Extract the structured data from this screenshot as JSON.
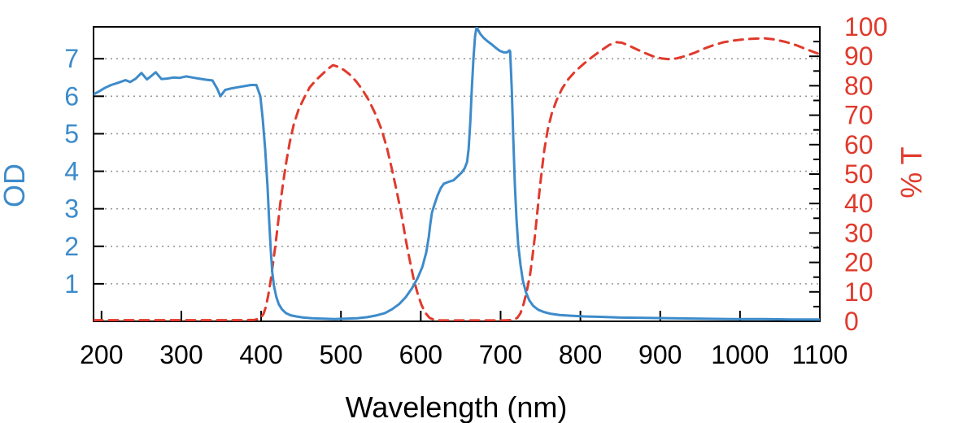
{
  "chart_data": {
    "type": "line",
    "title": "",
    "xlabel": "Wavelength (nm)",
    "ylabel_left": "OD",
    "ylabel_right": "% T",
    "x_range": [
      190,
      1100
    ],
    "x_ticks": [
      200,
      300,
      400,
      500,
      600,
      700,
      800,
      900,
      1000,
      1100
    ],
    "y_left_range": [
      0,
      7.85
    ],
    "y_left_ticks": [
      1,
      2,
      3,
      4,
      5,
      6,
      7
    ],
    "y_right_range": [
      0,
      100
    ],
    "y_right_ticks": [
      0,
      10,
      20,
      30,
      40,
      50,
      60,
      70,
      80,
      90,
      100
    ],
    "y_right_minor_step": 5,
    "grid": {
      "horizontal_at_left_ticks": true,
      "style": "dotted",
      "color": "#999999"
    },
    "legend": "none",
    "colors": {
      "left_axis": "#3d8bca",
      "right_axis": "#e03a2c",
      "frame": "#000000",
      "x_labels": "#000000",
      "background": "#ffffff"
    },
    "series": [
      {
        "name": "% T",
        "axis": "right",
        "color": "#e03a2c",
        "line_style": "dashed",
        "points": [
          [
            190,
            0.4
          ],
          [
            240,
            0.4
          ],
          [
            290,
            0.4
          ],
          [
            340,
            0.4
          ],
          [
            375,
            0.4
          ],
          [
            392,
            0.5
          ],
          [
            399,
            1.0
          ],
          [
            403,
            2.5
          ],
          [
            406,
            5
          ],
          [
            409,
            9
          ],
          [
            412,
            14
          ],
          [
            415,
            20
          ],
          [
            418,
            26
          ],
          [
            421,
            33
          ],
          [
            424,
            40
          ],
          [
            428,
            48
          ],
          [
            432,
            55
          ],
          [
            436,
            61
          ],
          [
            441,
            67
          ],
          [
            447,
            72
          ],
          [
            454,
            76
          ],
          [
            461,
            79.5
          ],
          [
            469,
            82
          ],
          [
            477,
            84
          ],
          [
            484,
            85.8
          ],
          [
            490,
            87
          ],
          [
            497,
            86.4
          ],
          [
            504,
            85.3
          ],
          [
            511,
            83.8
          ],
          [
            519,
            81.5
          ],
          [
            527,
            78.6
          ],
          [
            535,
            75
          ],
          [
            543,
            70.5
          ],
          [
            551,
            65
          ],
          [
            558,
            58.5
          ],
          [
            564,
            51.5
          ],
          [
            570,
            44
          ],
          [
            576,
            36
          ],
          [
            581,
            28
          ],
          [
            586,
            21
          ],
          [
            591,
            14.5
          ],
          [
            596,
            9.5
          ],
          [
            601,
            5.5
          ],
          [
            606,
            2.8
          ],
          [
            611,
            1.2
          ],
          [
            617,
            0.5
          ],
          [
            625,
            0.3
          ],
          [
            650,
            0.3
          ],
          [
            680,
            0.3
          ],
          [
            705,
            0.3
          ],
          [
            716,
            0.5
          ],
          [
            721,
            1.2
          ],
          [
            725,
            2.8
          ],
          [
            729,
            6
          ],
          [
            733,
            10.5
          ],
          [
            737,
            16
          ],
          [
            740,
            22
          ],
          [
            743,
            29
          ],
          [
            746,
            37
          ],
          [
            749,
            45
          ],
          [
            752,
            52
          ],
          [
            755,
            58.5
          ],
          [
            759,
            65
          ],
          [
            764,
            70.5
          ],
          [
            770,
            75
          ],
          [
            777,
            79
          ],
          [
            785,
            82.3
          ],
          [
            794,
            85
          ],
          [
            804,
            87.4
          ],
          [
            815,
            89.8
          ],
          [
            826,
            92
          ],
          [
            836,
            93.8
          ],
          [
            844,
            94.8
          ],
          [
            852,
            94.6
          ],
          [
            861,
            93.6
          ],
          [
            871,
            92.3
          ],
          [
            881,
            91.1
          ],
          [
            891,
            90
          ],
          [
            901,
            89.3
          ],
          [
            911,
            89
          ],
          [
            921,
            89.3
          ],
          [
            932,
            90.1
          ],
          [
            944,
            91.3
          ],
          [
            956,
            92.7
          ],
          [
            968,
            93.9
          ],
          [
            980,
            94.8
          ],
          [
            993,
            95.4
          ],
          [
            1006,
            95.8
          ],
          [
            1019,
            96
          ],
          [
            1031,
            96.1
          ],
          [
            1044,
            95.7
          ],
          [
            1057,
            94.9
          ],
          [
            1070,
            93.8
          ],
          [
            1082,
            92.5
          ],
          [
            1092,
            91.5
          ],
          [
            1100,
            90.7
          ]
        ]
      },
      {
        "name": "OD",
        "axis": "left",
        "color": "#3d8bca",
        "line_style": "solid",
        "points": [
          [
            190,
            6.05
          ],
          [
            197,
            6.13
          ],
          [
            204,
            6.22
          ],
          [
            212,
            6.3
          ],
          [
            221,
            6.36
          ],
          [
            230,
            6.43
          ],
          [
            236,
            6.38
          ],
          [
            243,
            6.47
          ],
          [
            250,
            6.62
          ],
          [
            257,
            6.45
          ],
          [
            263,
            6.55
          ],
          [
            268,
            6.64
          ],
          [
            275,
            6.46
          ],
          [
            282,
            6.47
          ],
          [
            290,
            6.5
          ],
          [
            298,
            6.49
          ],
          [
            306,
            6.53
          ],
          [
            314,
            6.5
          ],
          [
            322,
            6.47
          ],
          [
            331,
            6.44
          ],
          [
            339,
            6.42
          ],
          [
            345,
            6.2
          ],
          [
            349,
            6.0
          ],
          [
            355,
            6.17
          ],
          [
            363,
            6.21
          ],
          [
            371,
            6.24
          ],
          [
            379,
            6.27
          ],
          [
            387,
            6.3
          ],
          [
            394,
            6.3
          ],
          [
            399,
            6.0
          ],
          [
            402,
            5.4
          ],
          [
            405,
            4.6
          ],
          [
            408,
            3.6
          ],
          [
            410,
            2.7
          ],
          [
            412,
            1.9
          ],
          [
            414,
            1.3
          ],
          [
            416,
            0.95
          ],
          [
            419,
            0.65
          ],
          [
            422,
            0.46
          ],
          [
            426,
            0.32
          ],
          [
            431,
            0.22
          ],
          [
            437,
            0.16
          ],
          [
            444,
            0.13
          ],
          [
            453,
            0.1
          ],
          [
            464,
            0.08
          ],
          [
            478,
            0.07
          ],
          [
            492,
            0.06
          ],
          [
            506,
            0.07
          ],
          [
            520,
            0.08
          ],
          [
            533,
            0.11
          ],
          [
            545,
            0.16
          ],
          [
            555,
            0.22
          ],
          [
            564,
            0.32
          ],
          [
            573,
            0.46
          ],
          [
            581,
            0.64
          ],
          [
            589,
            0.88
          ],
          [
            596,
            1.15
          ],
          [
            602,
            1.45
          ],
          [
            607,
            1.85
          ],
          [
            610,
            2.25
          ],
          [
            612,
            2.6
          ],
          [
            614,
            2.9
          ],
          [
            617,
            3.1
          ],
          [
            621,
            3.35
          ],
          [
            625,
            3.55
          ],
          [
            629,
            3.67
          ],
          [
            635,
            3.72
          ],
          [
            641,
            3.76
          ],
          [
            646,
            3.86
          ],
          [
            651,
            3.96
          ],
          [
            655,
            4.08
          ],
          [
            658,
            4.25
          ],
          [
            660,
            4.6
          ],
          [
            662,
            5.3
          ],
          [
            664,
            6.2
          ],
          [
            666,
            7.0
          ],
          [
            668,
            7.6
          ],
          [
            670,
            7.85
          ],
          [
            672,
            7.76
          ],
          [
            675,
            7.65
          ],
          [
            679,
            7.55
          ],
          [
            684,
            7.46
          ],
          [
            689,
            7.38
          ],
          [
            694,
            7.29
          ],
          [
            699,
            7.21
          ],
          [
            704,
            7.17
          ],
          [
            708,
            7.17
          ],
          [
            711,
            7.22
          ],
          [
            712,
            7.2
          ],
          [
            714,
            6.2
          ],
          [
            716,
            4.8
          ],
          [
            718,
            3.6
          ],
          [
            720,
            2.7
          ],
          [
            722,
            2.05
          ],
          [
            725,
            1.5
          ],
          [
            728,
            1.08
          ],
          [
            732,
            0.76
          ],
          [
            736,
            0.56
          ],
          [
            741,
            0.41
          ],
          [
            747,
            0.31
          ],
          [
            754,
            0.25
          ],
          [
            763,
            0.2
          ],
          [
            774,
            0.17
          ],
          [
            788,
            0.15
          ],
          [
            805,
            0.13
          ],
          [
            825,
            0.12
          ],
          [
            850,
            0.1
          ],
          [
            880,
            0.09
          ],
          [
            915,
            0.08
          ],
          [
            950,
            0.07
          ],
          [
            990,
            0.06
          ],
          [
            1030,
            0.06
          ],
          [
            1065,
            0.05
          ],
          [
            1100,
            0.05
          ]
        ]
      }
    ]
  }
}
